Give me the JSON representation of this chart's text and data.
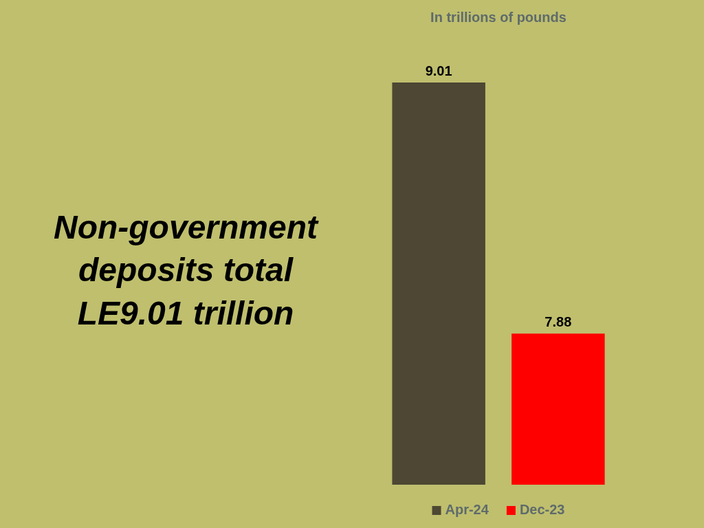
{
  "chart_data": {
    "type": "bar",
    "title": "Non-government deposits total LE9.01 trillion",
    "subtitle": "In trillions of pounds",
    "categories": [
      null,
      null
    ],
    "series": [
      {
        "name": "Apr-24",
        "color": "#4d4733",
        "values": [
          9.01,
          null
        ]
      },
      {
        "name": "Dec-23",
        "color": "#ff0000",
        "values": [
          null,
          7.88
        ]
      }
    ],
    "stacked": true,
    "ylim": [
      7.2,
      9.01
    ],
    "data_labels": true,
    "legend": "bottom",
    "tick_labels": false
  }
}
